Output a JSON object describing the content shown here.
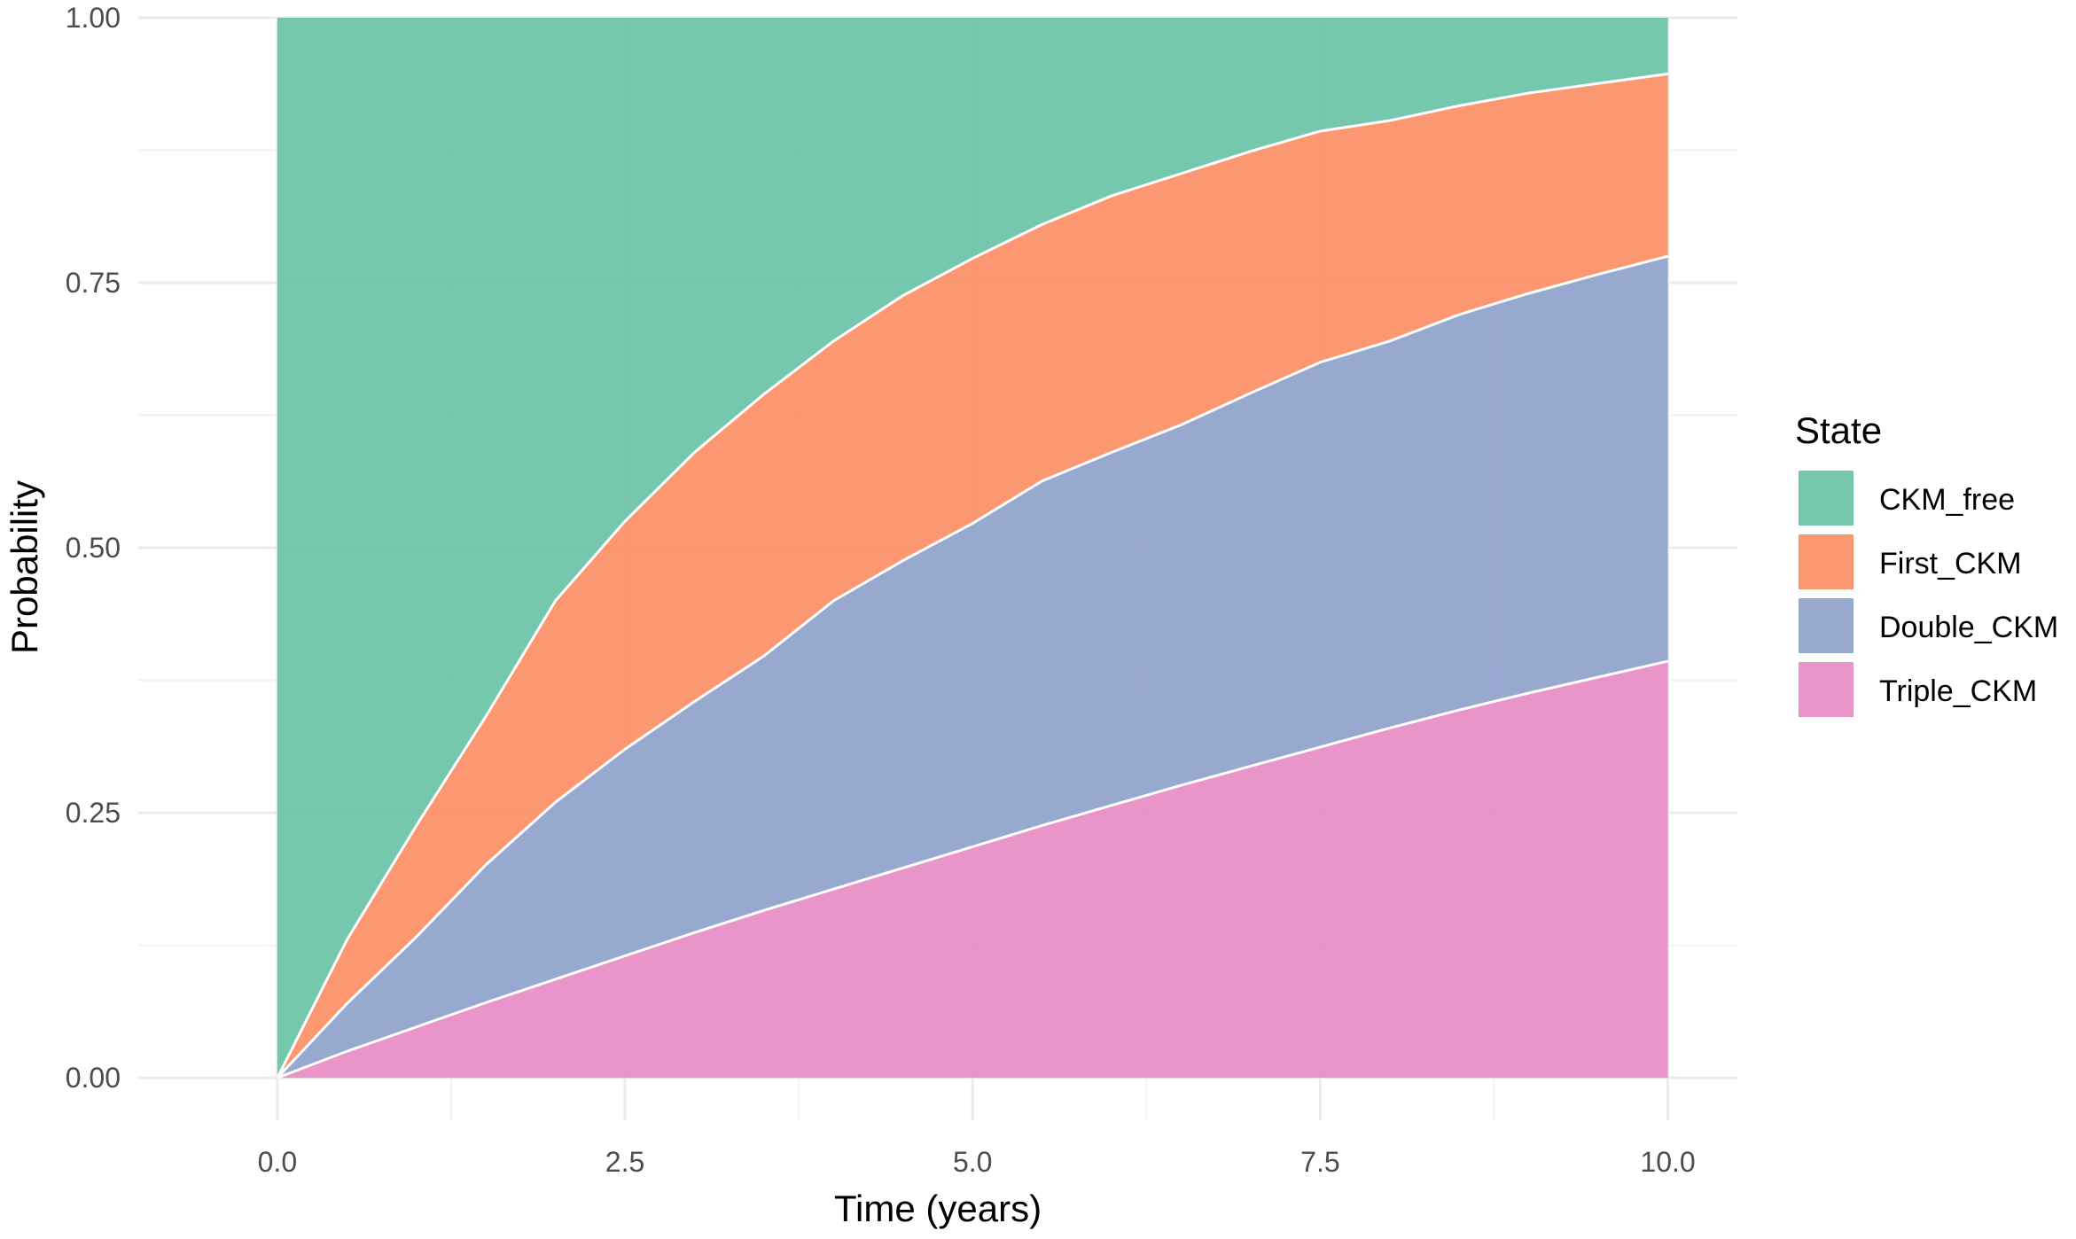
{
  "chart_data": {
    "type": "area",
    "stacked": true,
    "xlabel": "Time (years)",
    "ylabel": "Probability",
    "xlim": [
      -1.0,
      10.5
    ],
    "ylim": [
      -0.04,
      1.0
    ],
    "x_ticks": [
      "0.0",
      "2.5",
      "5.0",
      "7.5",
      "10.0"
    ],
    "y_ticks": [
      "0.00",
      "0.25",
      "0.50",
      "0.75",
      "1.00"
    ],
    "grid": true,
    "legend": {
      "title": "State",
      "position": "right"
    },
    "x": [
      0,
      0.5,
      1,
      1.5,
      2,
      2.5,
      3,
      3.5,
      4,
      4.5,
      5,
      5.5,
      6,
      6.5,
      7,
      7.5,
      8,
      8.5,
      9,
      9.5,
      10
    ],
    "series": [
      {
        "name": "Triple_CKM",
        "color": "#e78ac3",
        "values": [
          0,
          0.025,
          0.048,
          0.071,
          0.093,
          0.115,
          0.137,
          0.158,
          0.178,
          0.198,
          0.218,
          0.238,
          0.257,
          0.276,
          0.294,
          0.312,
          0.33,
          0.347,
          0.363,
          0.378,
          0.393
        ]
      },
      {
        "name": "Double_CKM",
        "color": "#8da0cb",
        "values": [
          0,
          0.045,
          0.085,
          0.13,
          0.167,
          0.195,
          0.218,
          0.24,
          0.272,
          0.29,
          0.305,
          0.325,
          0.333,
          0.34,
          0.352,
          0.363,
          0.365,
          0.373,
          0.377,
          0.38,
          0.382
        ]
      },
      {
        "name": "First_CKM",
        "color": "#fc8d62",
        "values": [
          0,
          0.06,
          0.105,
          0.14,
          0.19,
          0.215,
          0.235,
          0.247,
          0.245,
          0.25,
          0.25,
          0.242,
          0.242,
          0.237,
          0.228,
          0.218,
          0.208,
          0.197,
          0.189,
          0.18,
          0.172
        ]
      },
      {
        "name": "CKM_free",
        "color": "#66c2a5",
        "values": [
          1,
          0.87,
          0.762,
          0.659,
          0.55,
          0.475,
          0.41,
          0.355,
          0.305,
          0.262,
          0.227,
          0.195,
          0.168,
          0.147,
          0.126,
          0.107,
          0.097,
          0.083,
          0.071,
          0.062,
          0.053
        ]
      }
    ]
  }
}
